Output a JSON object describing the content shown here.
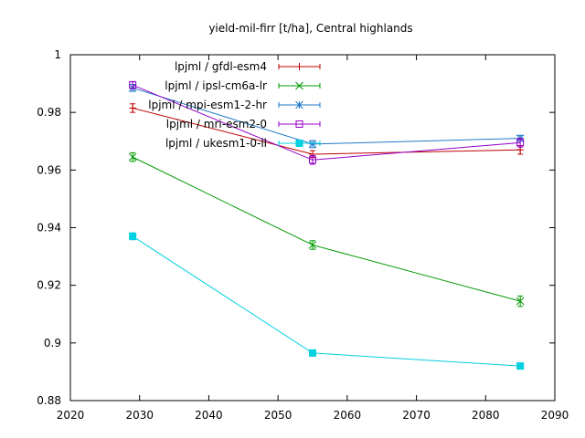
{
  "chart_data": {
    "type": "line",
    "title": "yield-mil-firr [t/ha], Central highlands",
    "xlabel": "",
    "ylabel": "",
    "xlim": [
      2020,
      2090
    ],
    "ylim": [
      0.88,
      1.0
    ],
    "x_ticks": [
      2020,
      2030,
      2040,
      2050,
      2060,
      2070,
      2080,
      2090
    ],
    "y_ticks": [
      0.88,
      0.9,
      0.92,
      0.94,
      0.96,
      0.98,
      1
    ],
    "x_tick_labels": [
      "2020",
      "2030",
      "2040",
      "2050",
      "2060",
      "2070",
      "2080",
      "2090"
    ],
    "y_tick_labels": [
      "0.88",
      "0.9",
      "0.92",
      "0.94",
      "0.96",
      "0.98",
      "1"
    ],
    "legend_position": "top-left",
    "series": [
      {
        "name": "lpjml / gfdl-esm4",
        "color": "#c00000",
        "marker": "plus",
        "points": [
          {
            "x": 2029,
            "y": 0.9815,
            "err": 0.0015
          },
          {
            "x": 2055,
            "y": 0.9655,
            "err": 0.0012
          },
          {
            "x": 2085,
            "y": 0.967,
            "err": 0.0015
          }
        ]
      },
      {
        "name": "lpjml / ipsl-cm6a-lr",
        "color": "#009900",
        "marker": "cross",
        "points": [
          {
            "x": 2029,
            "y": 0.9645,
            "err": 0.0015
          },
          {
            "x": 2055,
            "y": 0.934,
            "err": 0.0015
          },
          {
            "x": 2085,
            "y": 0.9145,
            "err": 0.0018
          }
        ]
      },
      {
        "name": "lpjml / mpi-esm1-2-hr",
        "color": "#1e78c8",
        "marker": "star",
        "points": [
          {
            "x": 2029,
            "y": 0.9885,
            "err": 0.0012
          },
          {
            "x": 2055,
            "y": 0.969,
            "err": 0.0012
          },
          {
            "x": 2085,
            "y": 0.971,
            "err": 0.001
          }
        ]
      },
      {
        "name": "lpjml / mri-esm2-0",
        "color": "#9400c8",
        "marker": "square",
        "points": [
          {
            "x": 2029,
            "y": 0.9895,
            "err": 0.0012
          },
          {
            "x": 2055,
            "y": 0.9635,
            "err": 0.0015
          },
          {
            "x": 2085,
            "y": 0.9695,
            "err": 0.0015
          }
        ]
      },
      {
        "name": "lpjml / ukesm1-0-ll",
        "color": "#00d0e0",
        "marker": "filled-square",
        "points": [
          {
            "x": 2029,
            "y": 0.937,
            "err": 0.0012
          },
          {
            "x": 2055,
            "y": 0.8965,
            "err": 0.001
          },
          {
            "x": 2085,
            "y": 0.892,
            "err": 0.0008
          }
        ]
      }
    ]
  }
}
